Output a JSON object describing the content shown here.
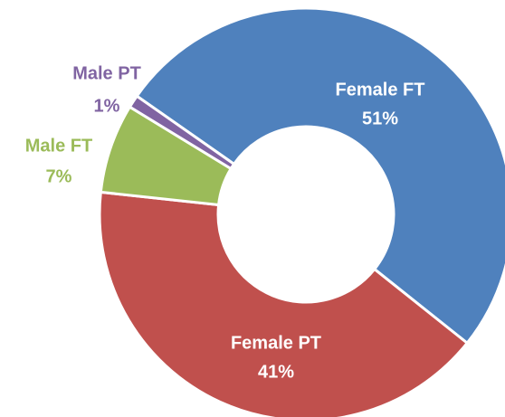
{
  "chart_data": {
    "type": "donut",
    "categories": [
      "Female FT",
      "Female PT",
      "Male FT",
      "Male PT"
    ],
    "values": [
      51,
      41,
      7,
      1
    ],
    "value_labels": [
      "51%",
      "41%",
      "7%",
      "1%"
    ],
    "colors": [
      "#4f81bd",
      "#c0504d",
      "#9bbb59",
      "#8064a2"
    ]
  }
}
